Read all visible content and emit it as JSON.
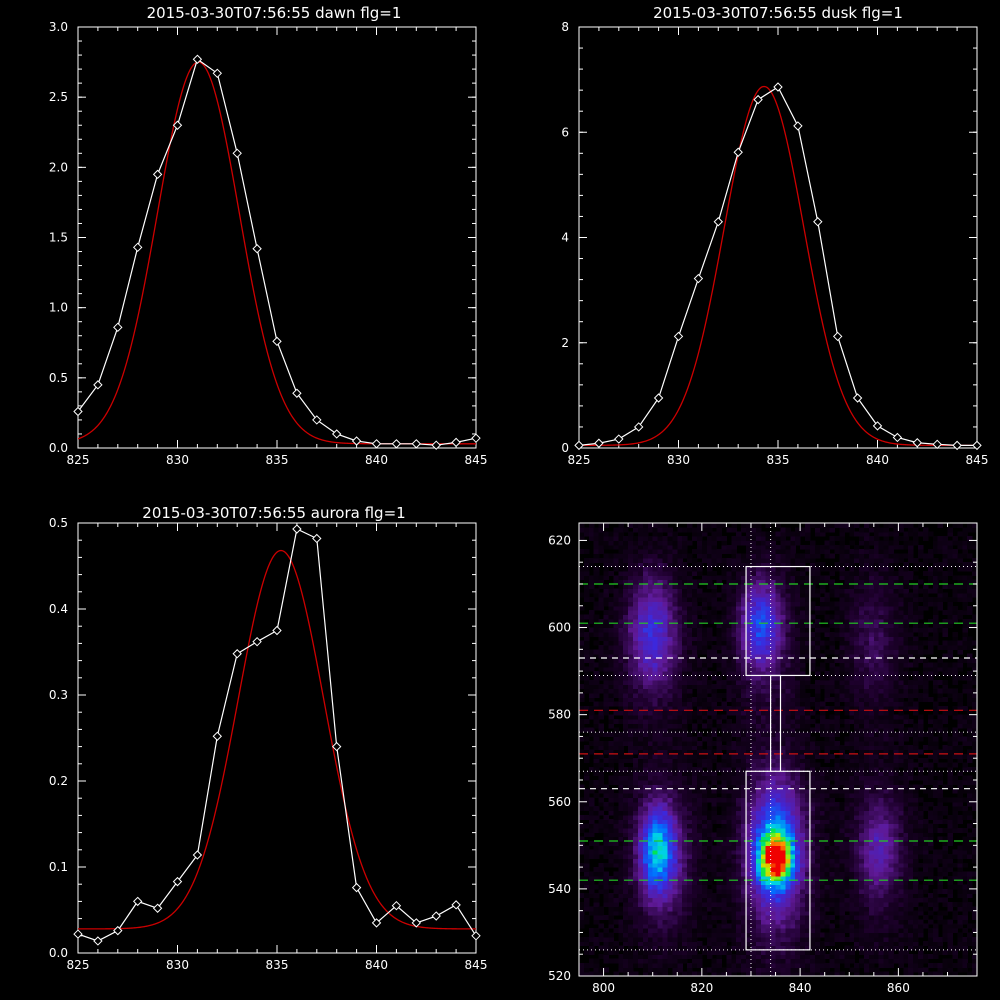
{
  "colors": {
    "background": "#000000",
    "axes": "#ffffff",
    "data_line": "#ffffff",
    "fit_line": "#cc0000",
    "marker": "#ffffff",
    "green_dash": "#22cc22",
    "red_dash": "#cc1111",
    "white_dash": "#ffffff",
    "box": "#ffffff"
  },
  "chart_data": [
    {
      "id": "dawn",
      "type": "line",
      "title": "2015-03-30T07:56:55 dawn flg=1",
      "xlim": [
        825,
        845
      ],
      "ylim": [
        0,
        3.0
      ],
      "xticks": [
        825,
        830,
        835,
        840,
        845
      ],
      "yticks": [
        0.0,
        0.5,
        1.0,
        1.5,
        2.0,
        2.5,
        3.0
      ],
      "ytick_labels": [
        "0.0",
        "0.5",
        "1.0",
        "1.5",
        "2.0",
        "2.5",
        "3.0"
      ],
      "series": [
        {
          "x": [
            825,
            826,
            827,
            828,
            829,
            830,
            831,
            832,
            833,
            834,
            835,
            836,
            837,
            838,
            839,
            840,
            841,
            842,
            843,
            844,
            845
          ],
          "values": [
            0.26,
            0.45,
            0.86,
            1.43,
            1.95,
            2.3,
            2.77,
            2.67,
            2.1,
            1.42,
            0.76,
            0.39,
            0.2,
            0.1,
            0.05,
            0.03,
            0.03,
            0.03,
            0.02,
            0.04,
            0.07
          ]
        }
      ],
      "fit": {
        "amplitude": 2.72,
        "center": 831.05,
        "sigma": 2.05,
        "offset": 0.03
      }
    },
    {
      "id": "dusk",
      "type": "line",
      "title": "2015-03-30T07:56:55 dusk flg=1",
      "xlim": [
        825,
        845
      ],
      "ylim": [
        0,
        8
      ],
      "xticks": [
        825,
        830,
        835,
        840,
        845
      ],
      "yticks": [
        0,
        2,
        4,
        6,
        8
      ],
      "ytick_labels": [
        "0",
        "2",
        "4",
        "6",
        "8"
      ],
      "series": [
        {
          "x": [
            825,
            826,
            827,
            828,
            829,
            830,
            831,
            832,
            833,
            834,
            835,
            836,
            837,
            838,
            839,
            840,
            841,
            842,
            843,
            844,
            845
          ],
          "values": [
            0.05,
            0.09,
            0.17,
            0.4,
            0.95,
            2.12,
            3.22,
            4.3,
            5.62,
            6.62,
            6.86,
            6.12,
            4.3,
            2.12,
            0.95,
            0.42,
            0.2,
            0.1,
            0.07,
            0.05,
            0.05
          ]
        }
      ],
      "fit": {
        "amplitude": 6.82,
        "center": 834.3,
        "sigma": 2.0,
        "offset": 0.05
      }
    },
    {
      "id": "aurora",
      "type": "line",
      "title": "2015-03-30T07:56:55 aurora flg=1",
      "xlim": [
        825,
        845
      ],
      "ylim": [
        0,
        0.5
      ],
      "xticks": [
        825,
        830,
        835,
        840,
        845
      ],
      "yticks": [
        0.0,
        0.1,
        0.2,
        0.3,
        0.4,
        0.5
      ],
      "ytick_labels": [
        "0.0",
        "0.1",
        "0.2",
        "0.3",
        "0.4",
        "0.5"
      ],
      "series": [
        {
          "x": [
            825,
            826,
            827,
            828,
            829,
            830,
            831,
            832,
            833,
            834,
            835,
            836,
            837,
            838,
            839,
            840,
            841,
            842,
            843,
            844,
            845
          ],
          "values": [
            0.022,
            0.014,
            0.026,
            0.06,
            0.052,
            0.083,
            0.114,
            0.252,
            0.348,
            0.362,
            0.375,
            0.493,
            0.482,
            0.24,
            0.076,
            0.035,
            0.055,
            0.035,
            0.043,
            0.056,
            0.02
          ]
        }
      ],
      "fit": {
        "amplitude": 0.44,
        "center": 835.2,
        "sigma": 2.15,
        "offset": 0.028
      }
    },
    {
      "id": "image",
      "type": "heatmap",
      "title": "",
      "xlim": [
        795,
        876
      ],
      "ylim": [
        520,
        624
      ],
      "xticks": [
        800,
        820,
        840,
        860
      ],
      "yticks": [
        520,
        540,
        560,
        580,
        600,
        620
      ],
      "ytick_labels": [
        "520",
        "540",
        "560",
        "580",
        "600",
        "620"
      ],
      "blobs": [
        {
          "cx": 811,
          "cy": 549,
          "sx": 2.2,
          "sy": 6,
          "amp": 0.42
        },
        {
          "cx": 812,
          "cy": 547,
          "sx": 4,
          "sy": 11,
          "amp": 0.14
        },
        {
          "cx": 835,
          "cy": 547,
          "sx": 2.2,
          "sy": 3.6,
          "amp": 0.78
        },
        {
          "cx": 835,
          "cy": 550,
          "sx": 3.2,
          "sy": 9,
          "amp": 0.32
        },
        {
          "cx": 835,
          "cy": 547,
          "sx": 4.8,
          "sy": 14,
          "amp": 0.13
        },
        {
          "cx": 856,
          "cy": 549,
          "sx": 2.6,
          "sy": 6,
          "amp": 0.12
        },
        {
          "cx": 856,
          "cy": 549,
          "sx": 4,
          "sy": 12,
          "amp": 0.07
        },
        {
          "cx": 810,
          "cy": 599,
          "sx": 3,
          "sy": 8,
          "amp": 0.2
        },
        {
          "cx": 810,
          "cy": 596,
          "sx": 4.5,
          "sy": 12,
          "amp": 0.06
        },
        {
          "cx": 832,
          "cy": 601,
          "sx": 2.6,
          "sy": 6,
          "amp": 0.26
        },
        {
          "cx": 833,
          "cy": 596,
          "sx": 4,
          "sy": 12,
          "amp": 0.08
        },
        {
          "cx": 855,
          "cy": 597,
          "sx": 3.5,
          "sy": 10,
          "amp": 0.08
        }
      ],
      "green_dashed_y": [
        542,
        551,
        601,
        610
      ],
      "red_dashed_y": [
        571,
        581
      ],
      "white_dashed_y": [
        563,
        593
      ],
      "dotted_y": [
        526,
        567,
        576,
        589,
        614
      ],
      "dotted_x": [
        830,
        834
      ],
      "boxes": [
        {
          "x0": 829,
          "x1": 842,
          "y0": 526,
          "y1": 567
        },
        {
          "x0": 829,
          "x1": 842,
          "y0": 589,
          "y1": 614
        }
      ],
      "connector": [
        [
          834,
          567
        ],
        [
          834,
          589
        ],
        [
          836,
          589
        ],
        [
          836,
          567
        ]
      ]
    }
  ]
}
